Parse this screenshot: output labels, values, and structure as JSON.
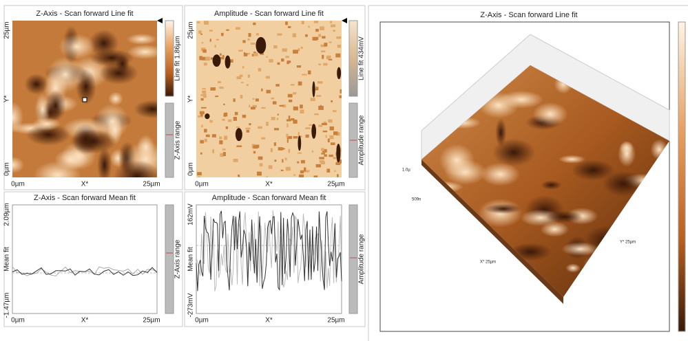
{
  "panels": [
    {
      "title": "Z-Axis - Scan forward   Line fit",
      "y_labels": [
        "25µm",
        "Y*",
        "0µm"
      ],
      "x_labels": [
        "0µm",
        "X*",
        "25µm"
      ],
      "side_labels": [
        "Line fit 1.86µm",
        "Z-Axis range"
      ]
    },
    {
      "title": "Amplitude - Scan forward   Line fit",
      "y_labels": [
        "25µm",
        "Y*",
        "0µm"
      ],
      "x_labels": [
        "0µm",
        "X*",
        "25µm"
      ],
      "side_labels": [
        "Line fit 434mV",
        "Amplitude range"
      ]
    },
    {
      "title": "Z-Axis - Scan forward   Mean fit",
      "y_labels": [
        "2.09µm",
        "Mean fit",
        "-1.47µm"
      ],
      "x_labels": [
        "0µm",
        "X*",
        "25µm"
      ],
      "side_labels": [
        "Z-Axis range"
      ]
    },
    {
      "title": "Amplitude - Scan forward   Mean fit",
      "y_labels": [
        "162mV",
        "Mean fit",
        "-273mV"
      ],
      "x_labels": [
        "0µm",
        "X*",
        "25µm"
      ],
      "side_labels": [
        "Amplitude range"
      ]
    }
  ],
  "view3d": {
    "title": "Z-Axis - Scan forward   Line fit",
    "labels": [
      "1.0µ",
      "509n",
      "Y* 25µm",
      "X* 25µm"
    ]
  }
}
